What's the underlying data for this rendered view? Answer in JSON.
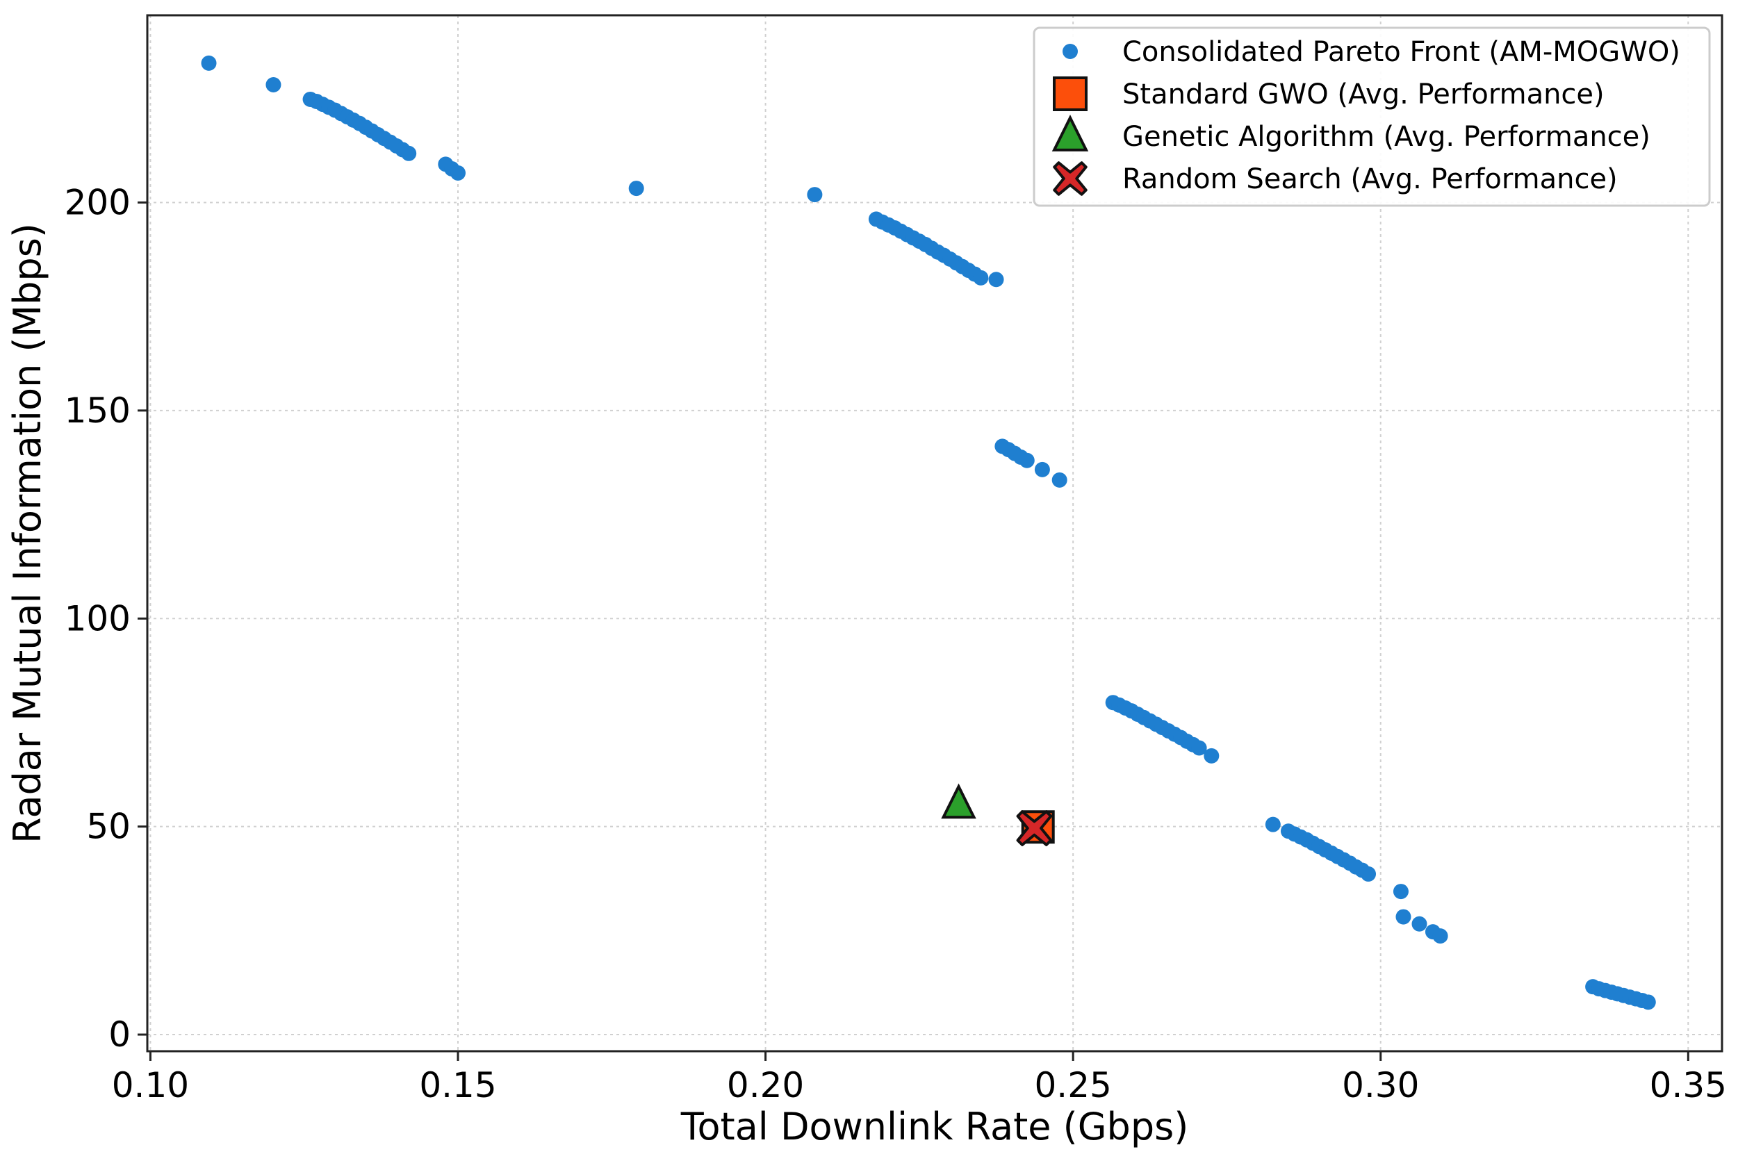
{
  "chart_data": {
    "type": "scatter",
    "title": "",
    "xlabel": "Total Downlink Rate (Gbps)",
    "ylabel": "Radar Mutual Information (Mbps)",
    "xlim": [
      0.0995,
      0.3555
    ],
    "ylim": [
      -4,
      245
    ],
    "xticks": [
      0.1,
      0.15,
      0.2,
      0.25,
      0.3,
      0.35
    ],
    "xtick_labels": [
      "0.10",
      "0.15",
      "0.20",
      "0.25",
      "0.30",
      "0.35"
    ],
    "yticks": [
      0,
      50,
      100,
      150,
      200
    ],
    "ytick_labels": [
      "0",
      "50",
      "100",
      "150",
      "200"
    ],
    "grid": true,
    "legend_position": "top-right",
    "series": [
      {
        "name": "Consolidated Pareto Front (AM-MOGWO)",
        "marker": "circle",
        "color": "#1f7fd0",
        "points": [
          [
            0.1095,
            233.5
          ],
          [
            0.12,
            228.3
          ],
          [
            0.126,
            224.8
          ],
          [
            0.127,
            224.3
          ],
          [
            0.128,
            223.6
          ],
          [
            0.129,
            222.9
          ],
          [
            0.13,
            222.2
          ],
          [
            0.131,
            221.4
          ],
          [
            0.132,
            220.6
          ],
          [
            0.133,
            219.8
          ],
          [
            0.134,
            219.0
          ],
          [
            0.135,
            218.1
          ],
          [
            0.136,
            217.2
          ],
          [
            0.137,
            216.3
          ],
          [
            0.138,
            215.4
          ],
          [
            0.139,
            214.5
          ],
          [
            0.14,
            213.6
          ],
          [
            0.141,
            212.7
          ],
          [
            0.142,
            211.8
          ],
          [
            0.148,
            209.2
          ],
          [
            0.149,
            208.1
          ],
          [
            0.15,
            207.1
          ],
          [
            0.179,
            203.4
          ],
          [
            0.208,
            201.9
          ],
          [
            0.218,
            196.0
          ],
          [
            0.219,
            195.3
          ],
          [
            0.22,
            194.6
          ],
          [
            0.221,
            193.9
          ],
          [
            0.222,
            193.1
          ],
          [
            0.223,
            192.3
          ],
          [
            0.224,
            191.5
          ],
          [
            0.225,
            190.7
          ],
          [
            0.226,
            189.9
          ],
          [
            0.227,
            189.0
          ],
          [
            0.228,
            188.1
          ],
          [
            0.229,
            187.3
          ],
          [
            0.23,
            186.4
          ],
          [
            0.231,
            185.5
          ],
          [
            0.232,
            184.6
          ],
          [
            0.233,
            183.7
          ],
          [
            0.234,
            182.8
          ],
          [
            0.235,
            181.9
          ],
          [
            0.2375,
            181.5
          ],
          [
            0.2385,
            141.4
          ],
          [
            0.2395,
            140.6
          ],
          [
            0.2405,
            139.7
          ],
          [
            0.2415,
            138.8
          ],
          [
            0.2425,
            138.0
          ],
          [
            0.245,
            135.8
          ],
          [
            0.2478,
            133.3
          ],
          [
            0.2565,
            79.8
          ],
          [
            0.2575,
            79.2
          ],
          [
            0.2585,
            78.5
          ],
          [
            0.2595,
            77.8
          ],
          [
            0.2605,
            77.0
          ],
          [
            0.2615,
            76.2
          ],
          [
            0.2625,
            75.4
          ],
          [
            0.2635,
            74.6
          ],
          [
            0.2645,
            73.8
          ],
          [
            0.2655,
            73.0
          ],
          [
            0.2665,
            72.2
          ],
          [
            0.2675,
            71.4
          ],
          [
            0.2685,
            70.5
          ],
          [
            0.2695,
            69.7
          ],
          [
            0.2705,
            68.9
          ],
          [
            0.2725,
            67.0
          ],
          [
            0.2825,
            50.5
          ],
          [
            0.285,
            48.9
          ],
          [
            0.286,
            48.2
          ],
          [
            0.287,
            47.5
          ],
          [
            0.288,
            46.8
          ],
          [
            0.289,
            46.0
          ],
          [
            0.29,
            45.2
          ],
          [
            0.291,
            44.4
          ],
          [
            0.292,
            43.6
          ],
          [
            0.293,
            42.8
          ],
          [
            0.294,
            42.0
          ],
          [
            0.295,
            41.2
          ],
          [
            0.296,
            40.3
          ],
          [
            0.297,
            39.5
          ],
          [
            0.298,
            38.6
          ],
          [
            0.3033,
            34.4
          ],
          [
            0.3037,
            28.3
          ],
          [
            0.3063,
            26.6
          ],
          [
            0.3085,
            24.7
          ],
          [
            0.3097,
            23.7
          ],
          [
            0.3345,
            11.5
          ],
          [
            0.3355,
            11.0
          ],
          [
            0.3365,
            10.6
          ],
          [
            0.3375,
            10.2
          ],
          [
            0.3385,
            9.8
          ],
          [
            0.3395,
            9.4
          ],
          [
            0.3405,
            9.0
          ],
          [
            0.3415,
            8.6
          ],
          [
            0.3425,
            8.2
          ],
          [
            0.3435,
            7.8
          ]
        ]
      },
      {
        "name": "Standard GWO (Avg. Performance)",
        "marker": "square",
        "color": "#fc4f0b",
        "points": [
          [
            0.2443,
            49.9
          ]
        ]
      },
      {
        "name": "Genetic Algorithm (Avg. Performance)",
        "marker": "triangle",
        "color": "#2ba02b",
        "points": [
          [
            0.2314,
            55.4
          ]
        ]
      },
      {
        "name": "Random Search (Avg. Performance)",
        "marker": "x",
        "color": "#d62728",
        "points": [
          [
            0.2437,
            49.6
          ]
        ]
      }
    ]
  }
}
